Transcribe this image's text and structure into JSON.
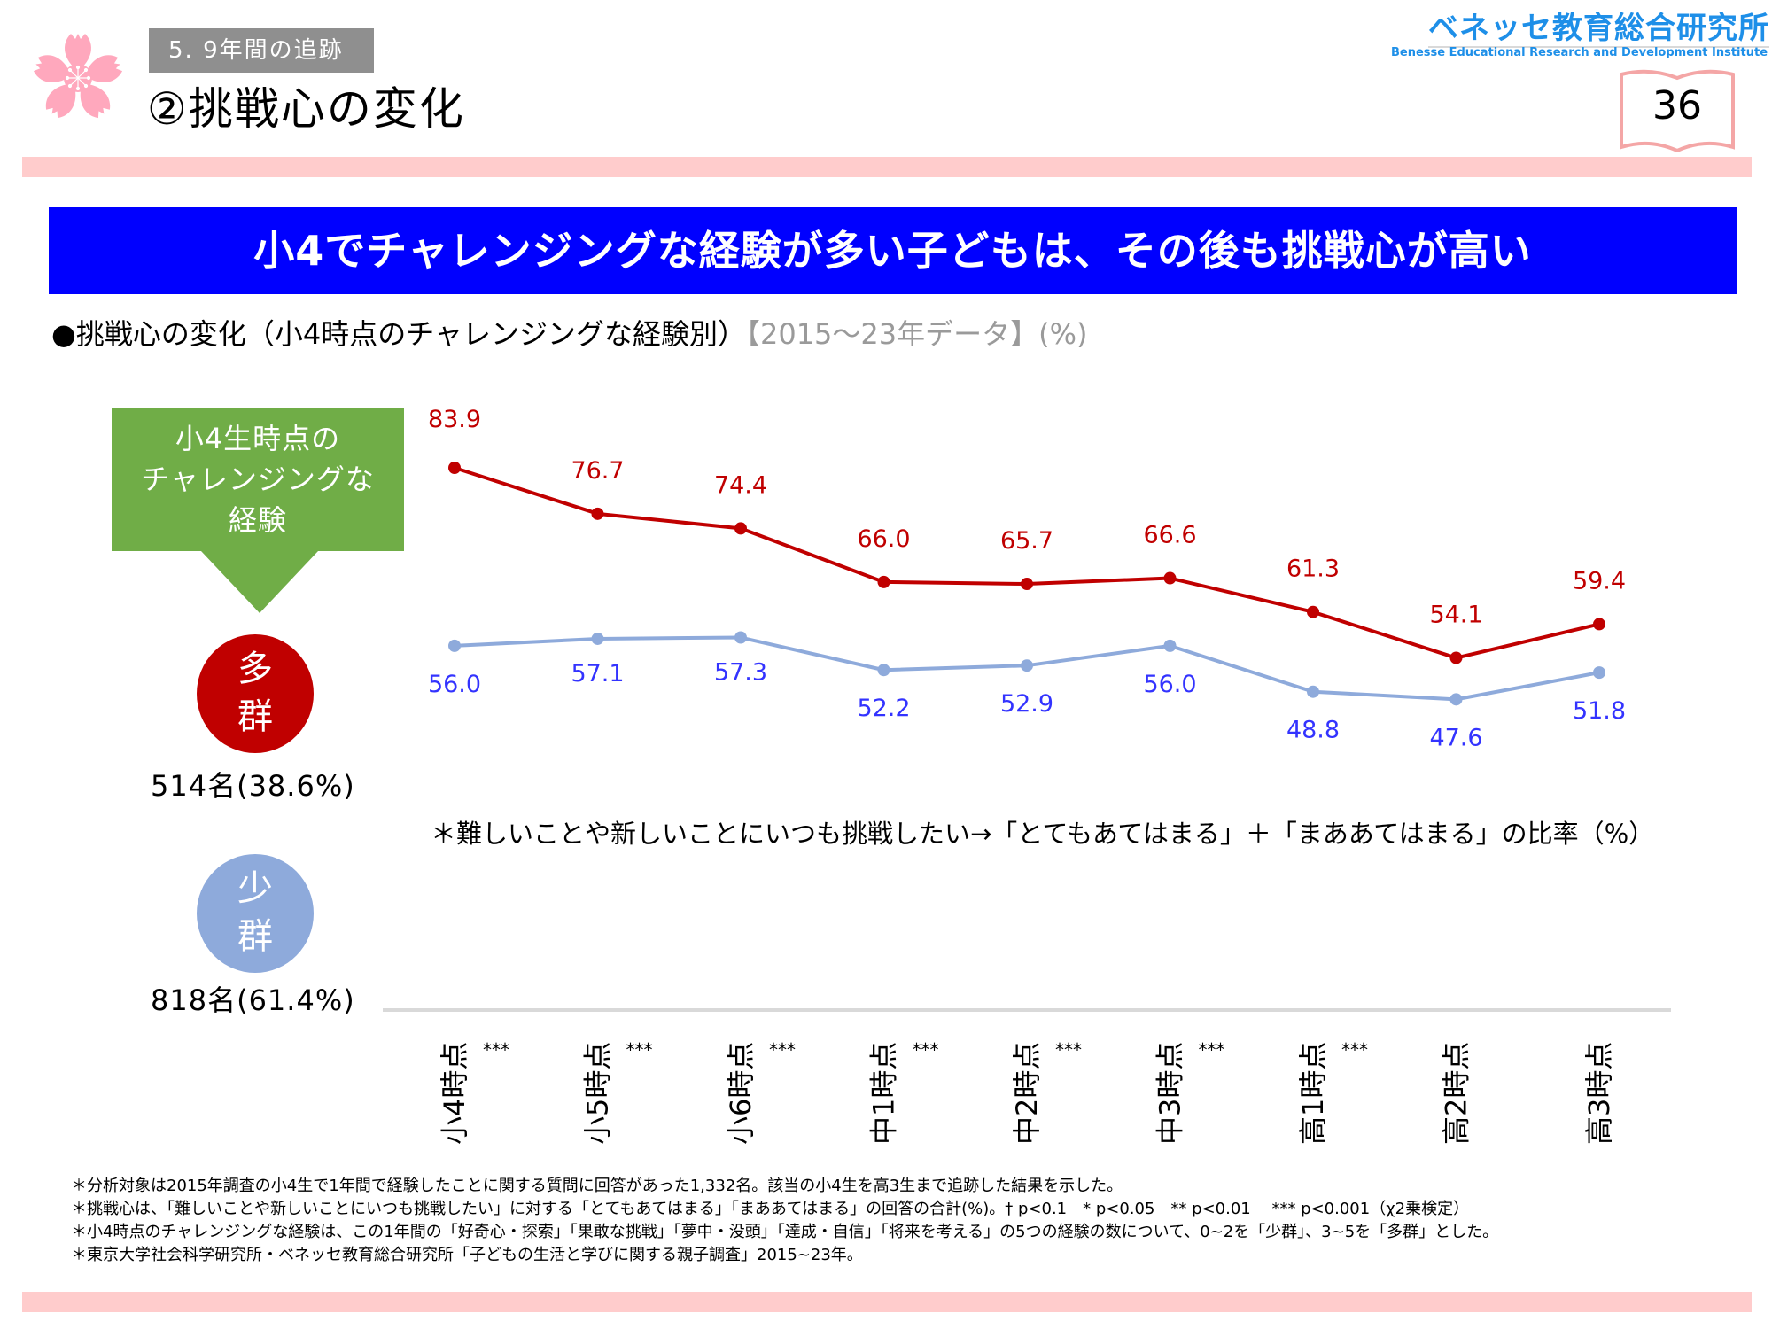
{
  "header": {
    "section_tag": "5. 9年間の追跡",
    "page_title": "②挑戦心の変化",
    "logo_jp": "ベネッセ教育総合研究所",
    "logo_en": "Benesse  Educational Research and Development Institute",
    "page_number": "36"
  },
  "banner": {
    "text": "小4でチャレンジングな経験が多い子どもは、その後も挑戦心が高い"
  },
  "subtitle": {
    "main": "●挑戦心の変化（小4時点のチャレンジングな経験別）",
    "meta": "【2015～23年データ】(%)"
  },
  "left_panel": {
    "box_lines": [
      "小4生時点の",
      "チャレンジングな",
      "経験"
    ],
    "high_group": {
      "label_lines": [
        "多",
        "群"
      ],
      "count": "514名(38.6%)"
    },
    "low_group": {
      "label_lines": [
        "少",
        "群"
      ],
      "count": "818名(61.4%)"
    }
  },
  "colors": {
    "high": "#c00000",
    "low_line": "#8eaadb",
    "low_label": "#3333ff",
    "banner": "#0000ff",
    "pink": "#ffcccc",
    "green": "#70ad47"
  },
  "chart_data": {
    "type": "line",
    "title": "挑戦心の変化（小4時点のチャレンジングな経験別）",
    "xlabel": "",
    "ylabel": "%",
    "categories": [
      "小4時点",
      "小5時点",
      "小6時点",
      "中1時点",
      "中2時点",
      "中3時点",
      "高1時点",
      "高2時点",
      "高3時点"
    ],
    "significance": [
      "***",
      "***",
      "***",
      "***",
      "***",
      "***",
      "***",
      "",
      ""
    ],
    "series": [
      {
        "name": "多群",
        "values": [
          83.9,
          76.7,
          74.4,
          66.0,
          65.7,
          66.6,
          61.3,
          54.1,
          59.4
        ]
      },
      {
        "name": "少群",
        "values": [
          56.0,
          57.1,
          57.3,
          52.2,
          52.9,
          56.0,
          48.8,
          47.6,
          51.8
        ]
      }
    ],
    "value_labels": {
      "多群": [
        "83.9",
        "76.7",
        "74.4",
        "66.0",
        "65.7",
        "66.6",
        "61.3",
        "54.1",
        "59.4"
      ],
      "少群": [
        "56.0",
        "57.1",
        "57.3",
        "52.2",
        "52.9",
        "56.0",
        "48.8",
        "47.6",
        "51.8"
      ]
    },
    "grid": false,
    "legend": "left (group circles)",
    "note": "＊難しいことや新しいことにいつも挑戦したい→「とてもあてはまる」＋「まああてはまる」の比率（%）"
  },
  "footnotes": [
    "＊分析対象は2015年調査の小4生で1年間で経験したことに関する質問に回答があった1,332名。該当の小4生を高3生まで追跡した結果を示した。",
    "＊挑戦心は、「難しいことや新しいことにいつも挑戦したい」に対する「とてもあてはまる」「まああてはまる」の回答の合計(%)。† p<0.1　* p<0.05　** p<0.01　 *** p<0.001（χ2乗検定）",
    "＊小4時点のチャレンジングな経験は、この1年間の「好奇心・探索」「果敢な挑戦」「夢中・没頭」「達成・自信」「将来を考える」の5つの経験の数について、0~2を「少群」、3~5を「多群」とした。",
    "＊東京大学社会科学研究所・ベネッセ教育総合研究所「子どもの生活と学びに関する親子調査」2015~23年。"
  ]
}
